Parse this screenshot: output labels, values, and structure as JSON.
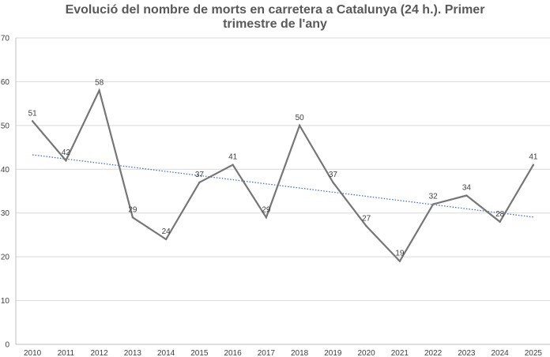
{
  "chart_data": {
    "type": "line",
    "title_lines": [
      "Evolució del nombre de morts en carretera a Catalunya (24 h.). Primer",
      "trimestre de l'any"
    ],
    "categories": [
      "2010",
      "2011",
      "2012",
      "2013",
      "2014",
      "2015",
      "2016",
      "2017",
      "2018",
      "2019",
      "2020",
      "2021",
      "2022",
      "2023",
      "2024",
      "2025"
    ],
    "series": [
      {
        "values": [
          51,
          42,
          58,
          29,
          24,
          37,
          41,
          29,
          50,
          37,
          27,
          19,
          32,
          34,
          28,
          41
        ]
      }
    ],
    "trendline": {
      "type": "linear",
      "style": "dotted"
    },
    "ylim": [
      0,
      70
    ],
    "yticks": [
      0,
      10,
      20,
      30,
      40,
      50,
      60,
      70
    ],
    "grid": true,
    "legend": "none",
    "data_labels": true,
    "colors": {
      "series": "#767676",
      "trendline": "#4472C4",
      "grid": "#d9d9d9",
      "axis": "#bfbfbf",
      "text": "#404040",
      "title": "#595959"
    }
  }
}
